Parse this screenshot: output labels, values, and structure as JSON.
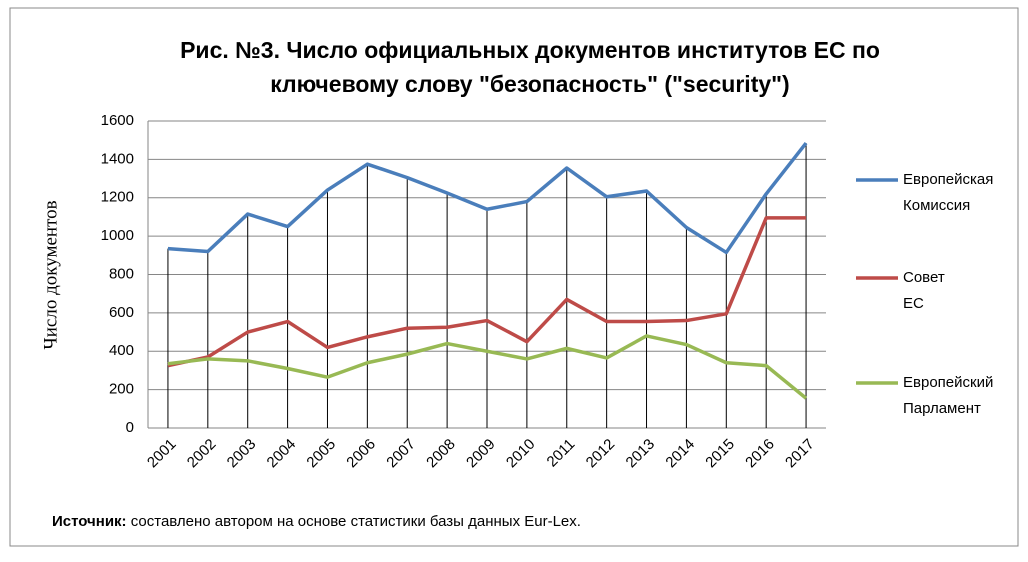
{
  "chart_data": {
    "type": "line",
    "title_lines": [
      "Рис. №3. Число официальных документов институтов ЕС по",
      "ключевому слову \"безопасность\" (\"security\")"
    ],
    "ylabel": "Число документов",
    "categories": [
      "2001",
      "2002",
      "2003",
      "2004",
      "2005",
      "2006",
      "2007",
      "2008",
      "2009",
      "2010",
      "2011",
      "2012",
      "2013",
      "2014",
      "2015",
      "2016",
      "2017"
    ],
    "series": [
      {
        "name": "Европейская Комиссия",
        "color": "#4a7ebb",
        "values": [
          935,
          920,
          1115,
          1050,
          1240,
          1375,
          1305,
          1225,
          1140,
          1180,
          1355,
          1205,
          1235,
          1045,
          915,
          1220,
          1485
        ]
      },
      {
        "name": "Совет ЕС",
        "color": "#be4b48",
        "values": [
          325,
          370,
          500,
          555,
          420,
          475,
          520,
          525,
          560,
          450,
          670,
          555,
          555,
          560,
          595,
          1095,
          1095
        ]
      },
      {
        "name": "Европейский Парламент",
        "color": "#98b954",
        "values": [
          335,
          360,
          350,
          310,
          265,
          340,
          385,
          440,
          400,
          360,
          415,
          365,
          480,
          435,
          340,
          325,
          155
        ]
      }
    ],
    "ylim": [
      0,
      1600
    ],
    "yticks": [
      0,
      200,
      400,
      600,
      800,
      1000,
      1200,
      1400,
      1600
    ],
    "grid": true,
    "drop_lines": true,
    "source_label": "Источник:",
    "source_text": "составлено автором на основе статистики базы данных Eur-Lex."
  }
}
